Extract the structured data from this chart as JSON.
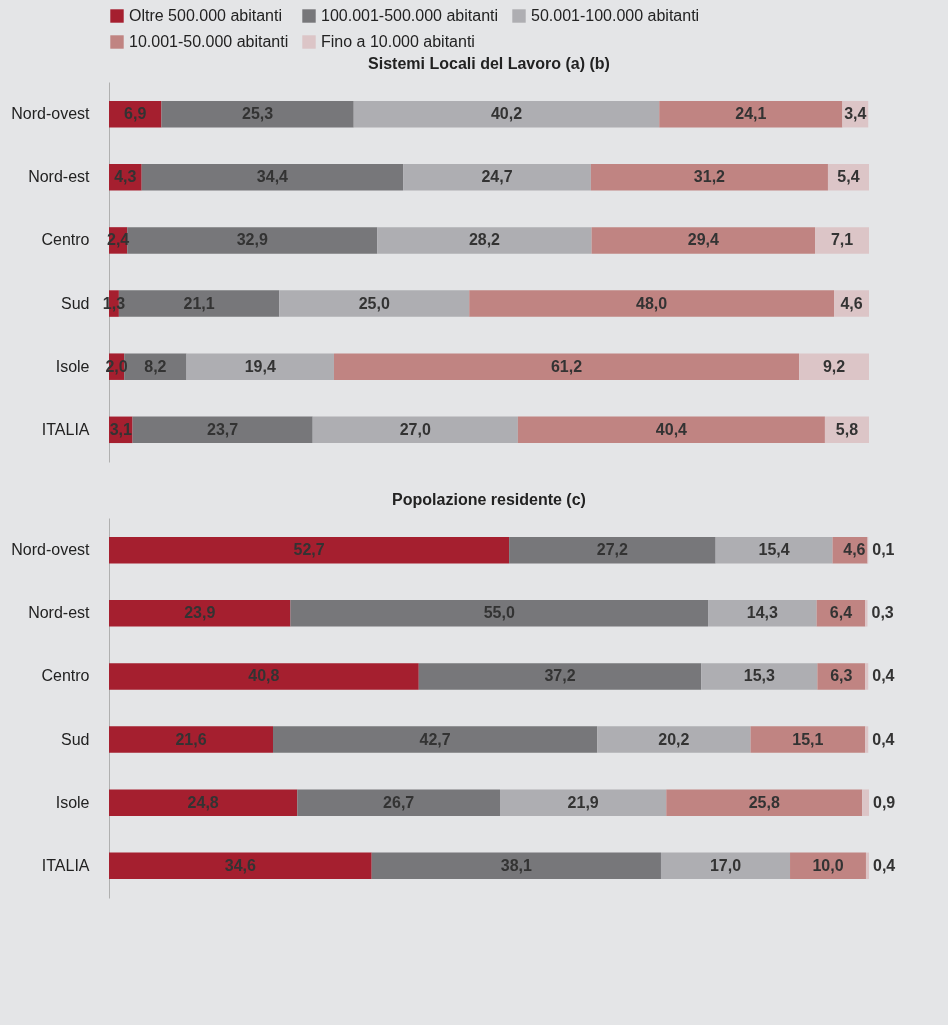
{
  "chart_data": [
    {
      "type": "bar",
      "orientation": "horizontal",
      "stacked": true,
      "title": "Sistemi Locali del Lavoro (a) (b)",
      "categories": [
        "Nord-ovest",
        "Nord-est",
        "Centro",
        "Sud",
        "Isole",
        "ITALIA"
      ],
      "tick_labels": "y",
      "legend": "top",
      "series": [
        {
          "name": "Oltre 500.000 abitanti",
          "color": "#a51f2f",
          "values": [
            6.9,
            4.3,
            2.4,
            1.3,
            2.0,
            3.1
          ],
          "value_labels": [
            "6,9",
            "4,3",
            "2,4",
            "1,3",
            "2,0",
            "3,1"
          ]
        },
        {
          "name": "100.001-500.000 abitanti",
          "color": "#77777a",
          "values": [
            25.3,
            34.4,
            32.9,
            21.1,
            8.2,
            23.7
          ],
          "value_labels": [
            "25,3",
            "34,4",
            "32,9",
            "21,1",
            "8,2",
            "23,7"
          ]
        },
        {
          "name": "50.001-100.000 abitanti",
          "color": "#aeaeb2",
          "values": [
            40.2,
            24.7,
            28.2,
            25.0,
            19.4,
            27.0
          ],
          "value_labels": [
            "40,2",
            "24,7",
            "28,2",
            "25,0",
            "19,4",
            "27,0"
          ]
        },
        {
          "name": "10.001-50.000 abitanti",
          "color": "#c08482",
          "values": [
            24.1,
            31.2,
            29.4,
            48.0,
            61.2,
            40.4
          ],
          "value_labels": [
            "24,1",
            "31,2",
            "29,4",
            "48,0",
            "61,2",
            "40,4"
          ]
        },
        {
          "name": "Fino a 10.000 abitanti",
          "color": "#dcc5c7",
          "values": [
            3.4,
            5.4,
            7.1,
            4.6,
            9.2,
            5.8
          ],
          "value_labels": [
            "3,4",
            "5,4",
            "7,1",
            "4,6",
            "9,2",
            "5,8"
          ]
        }
      ]
    },
    {
      "type": "bar",
      "orientation": "horizontal",
      "stacked": true,
      "title": "Popolazione residente (c)",
      "categories": [
        "Nord-ovest",
        "Nord-est",
        "Centro",
        "Sud",
        "Isole",
        "ITALIA"
      ],
      "tick_labels": "y",
      "series": [
        {
          "name": "Oltre 500.000 abitanti",
          "color": "#a51f2f",
          "values": [
            52.7,
            23.9,
            40.8,
            21.6,
            24.8,
            34.6
          ],
          "value_labels": [
            "52,7",
            "23,9",
            "40,8",
            "21,6",
            "24,8",
            "34,6"
          ]
        },
        {
          "name": "100.001-500.000 abitanti",
          "color": "#77777a",
          "values": [
            27.2,
            55.0,
            37.2,
            42.7,
            26.7,
            38.1
          ],
          "value_labels": [
            "27,2",
            "55,0",
            "37,2",
            "42,7",
            "26,7",
            "38,1"
          ]
        },
        {
          "name": "50.001-100.000 abitanti",
          "color": "#aeaeb2",
          "values": [
            15.4,
            14.3,
            15.3,
            20.2,
            21.9,
            17.0
          ],
          "value_labels": [
            "15,4",
            "14,3",
            "15,3",
            "20,2",
            "21,9",
            "17,0"
          ]
        },
        {
          "name": "10.001-50.000 abitanti",
          "color": "#c08482",
          "values": [
            4.6,
            6.4,
            6.3,
            15.1,
            25.8,
            10.0
          ],
          "value_labels": [
            "4,6",
            "6,4",
            "6,3",
            "15,1",
            "25,8",
            "10,0"
          ]
        },
        {
          "name": "Fino a 10.000 abitanti",
          "color": "#dcc5c7",
          "values": [
            0.1,
            0.3,
            0.4,
            0.4,
            0.9,
            0.4
          ],
          "value_labels": [
            "0,1",
            "0,3",
            "0,4",
            "0,4",
            "0,9",
            "0,4"
          ]
        }
      ]
    }
  ]
}
